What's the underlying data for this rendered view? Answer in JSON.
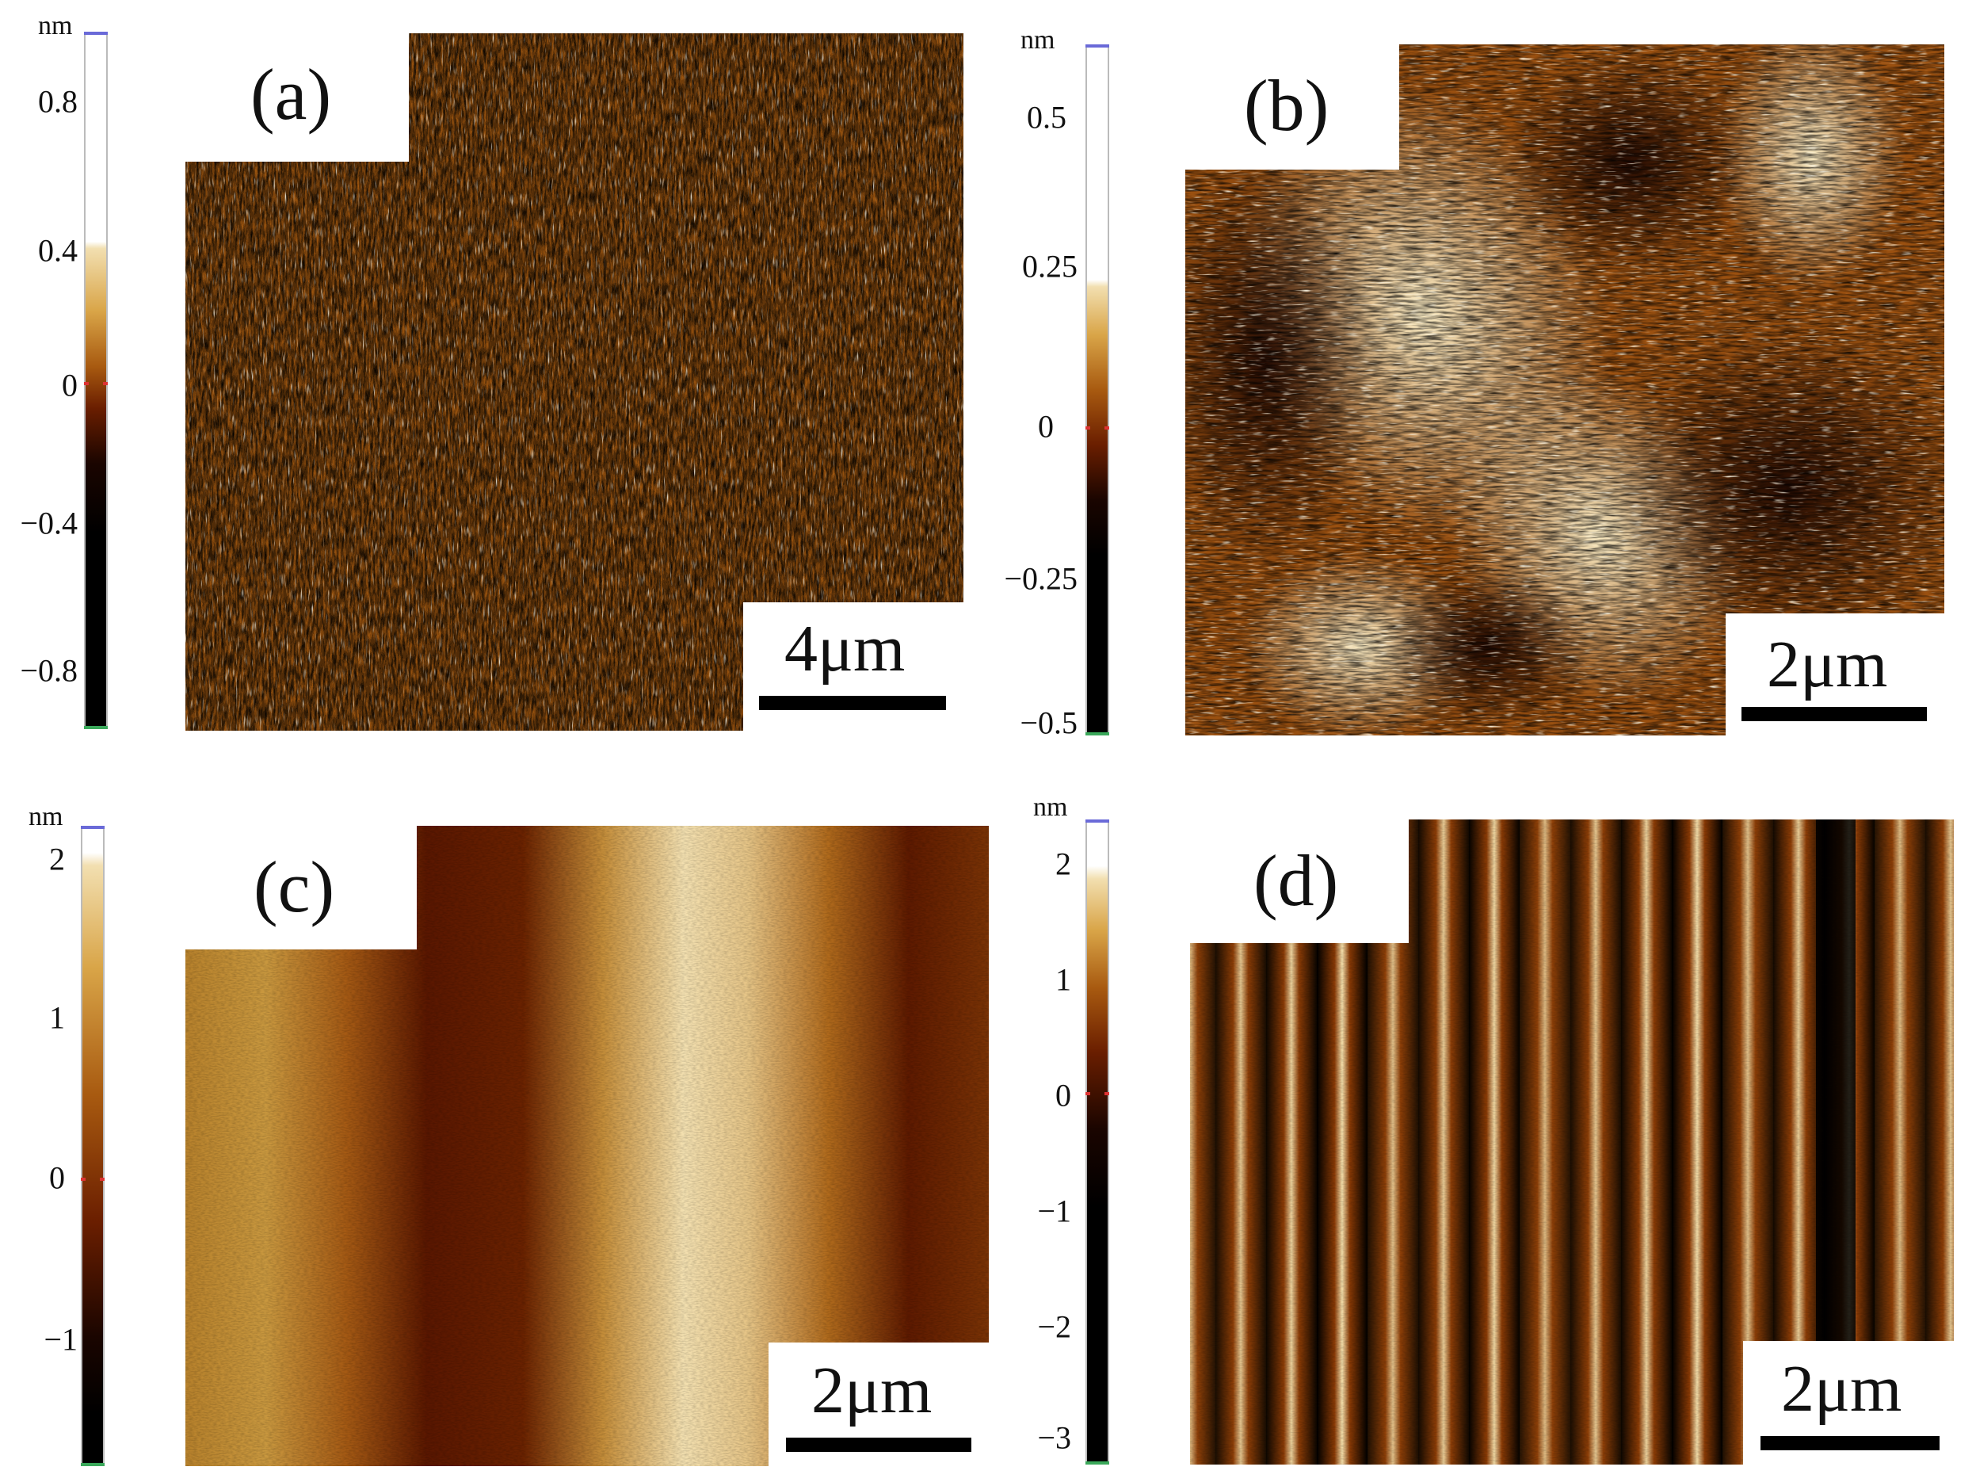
{
  "panels": [
    {
      "id": "a",
      "label": "(a)",
      "scale": "4μm",
      "colorbar": {
        "unit": "nm",
        "ticks": [
          "0.8",
          "0.4",
          "0",
          "−0.4",
          "−0.8"
        ]
      },
      "texture": "fine-grain"
    },
    {
      "id": "b",
      "label": "(b)",
      "scale": "2μm",
      "colorbar": {
        "unit": "nm",
        "ticks": [
          "0.5",
          "0.25",
          "0",
          "−0.25",
          "−0.5"
        ]
      },
      "texture": "diagonal-waves"
    },
    {
      "id": "c",
      "label": "(c)",
      "scale": "2μm",
      "colorbar": {
        "unit": "nm",
        "ticks": [
          "2",
          "1",
          "0",
          "−1"
        ]
      },
      "texture": "broad-stripes"
    },
    {
      "id": "d",
      "label": "(d)",
      "scale": "2μm",
      "colorbar": {
        "unit": "nm",
        "ticks": [
          "2",
          "1",
          "0",
          "−1",
          "−2",
          "−3"
        ]
      },
      "texture": "narrow-stripes"
    }
  ],
  "colors": {
    "afm_low": "#000000",
    "afm_mid_dark": "#5a1a00",
    "afm_mid": "#a85a10",
    "afm_high": "#e8c070",
    "afm_peak": "#fff8e8"
  }
}
